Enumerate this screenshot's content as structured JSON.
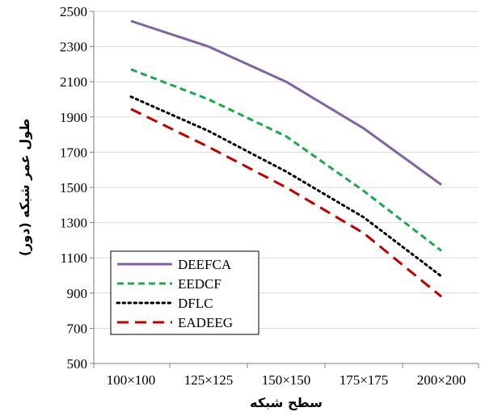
{
  "chart_data": {
    "type": "line",
    "title": "",
    "xlabel": "سطح شبکه",
    "ylabel": "طول عمر شبکه (دور)",
    "categories": [
      "100×100",
      "125×125",
      "150×150",
      "175×175",
      "200×200"
    ],
    "ylim": [
      500,
      2500
    ],
    "yticks": [
      "2500",
      "2300",
      "2100",
      "1900",
      "1700",
      "1500",
      "1300",
      "1100",
      "900",
      "700",
      "500"
    ],
    "grid": "horizontal",
    "legend_position": "bottom-left",
    "series": [
      {
        "name": "DEEFCA",
        "values": [
          2445,
          2300,
          2100,
          1835,
          1515
        ],
        "color": "#8064a2",
        "dash": "solid"
      },
      {
        "name": "EEDCF",
        "values": [
          2170,
          2000,
          1790,
          1480,
          1140
        ],
        "color": "#1fa84a",
        "dash": "dashed"
      },
      {
        "name": "DFLC",
        "values": [
          2015,
          1820,
          1590,
          1330,
          995
        ],
        "color": "#000000",
        "dash": "dotted"
      },
      {
        "name": "EADEEG",
        "values": [
          1945,
          1730,
          1500,
          1240,
          880
        ],
        "color": "#c00000",
        "dash": "longdash"
      }
    ]
  }
}
